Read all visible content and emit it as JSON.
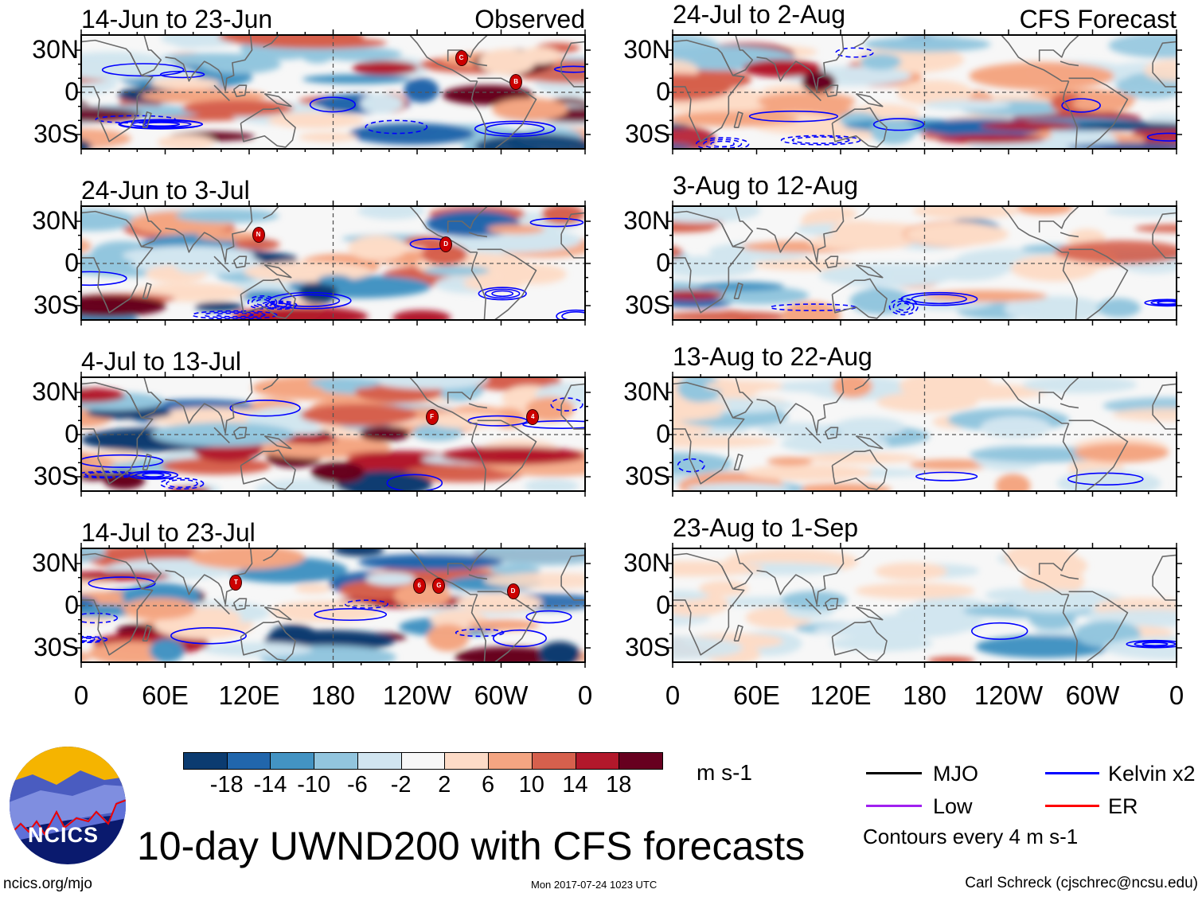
{
  "panels_left": [
    {
      "title": "14-Jun to 23-Jun",
      "tag": "Observed",
      "storms": [
        {
          "label": "C",
          "lon": 271,
          "lat": 25
        },
        {
          "label": "B",
          "lon": 310,
          "lat": 8
        }
      ]
    },
    {
      "title": "24-Jun to 3-Jul",
      "tag": "",
      "storms": [
        {
          "label": "N",
          "lon": 126,
          "lat": 21
        },
        {
          "label": "D",
          "lon": 260,
          "lat": 14
        }
      ]
    },
    {
      "title": "4-Jul to 13-Jul",
      "tag": "",
      "storms": [
        {
          "label": "F",
          "lon": 250,
          "lat": 13
        },
        {
          "label": "4",
          "lon": 322,
          "lat": 13
        }
      ]
    },
    {
      "title": "14-Jul to 23-Jul",
      "tag": "",
      "storms": [
        {
          "label": "T",
          "lon": 110,
          "lat": 17
        },
        {
          "label": "6",
          "lon": 241,
          "lat": 15
        },
        {
          "label": "G",
          "lon": 255,
          "lat": 15
        },
        {
          "label": "D",
          "lon": 308,
          "lat": 11
        }
      ]
    }
  ],
  "panels_right": [
    {
      "title": "24-Jul to 2-Aug",
      "tag": "CFS Forecast",
      "storms": []
    },
    {
      "title": "3-Aug to 12-Aug",
      "tag": "",
      "storms": []
    },
    {
      "title": "13-Aug to 22-Aug",
      "tag": "",
      "storms": []
    },
    {
      "title": "23-Aug to 1-Sep",
      "tag": "",
      "storms": []
    }
  ],
  "y_ticks": [
    "30N",
    "0",
    "30S"
  ],
  "x_ticks": [
    "0",
    "60E",
    "120E",
    "180",
    "120W",
    "60W",
    "0"
  ],
  "colorbar": {
    "colors": [
      "#0b3b70",
      "#2166ac",
      "#4393c3",
      "#92c5de",
      "#d1e5f0",
      "#f7f7f7",
      "#fddbc7",
      "#f4a582",
      "#d6604d",
      "#b2182b",
      "#67001f"
    ],
    "labels": [
      "-18",
      "-14",
      "-10",
      "-6",
      "-2",
      "2",
      "6",
      "10",
      "14",
      "18"
    ],
    "units": "m s-1"
  },
  "legend": [
    {
      "label": "MJO",
      "color": "#000000"
    },
    {
      "label": "Kelvin x2",
      "color": "#0000ff"
    },
    {
      "label": "Low",
      "color": "#a020f0"
    },
    {
      "label": "ER",
      "color": "#ff0000"
    }
  ],
  "contour_note": "Contours every 4 m s-1",
  "title": "10-day UWND200 with CFS forecasts",
  "logo_text": "NCICS",
  "site": "ncics.org/mjo",
  "timestamp": "Mon 2017-07-24 1023 UTC",
  "author": "Carl Schreck (cjschrec@ncsu.edu)"
}
